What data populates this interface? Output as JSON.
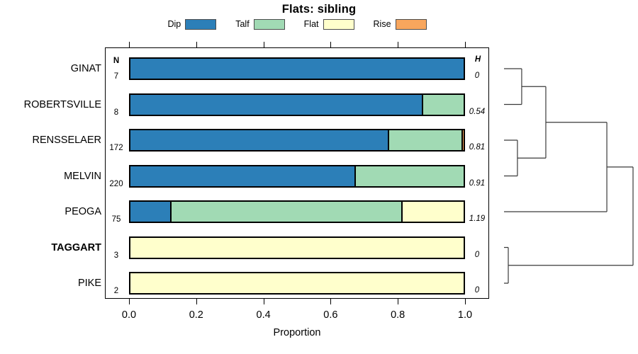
{
  "chart_data": {
    "type": "bar",
    "orientation": "horizontal",
    "stacked": true,
    "title": "Flats: sibling",
    "xlabel": "Proportion",
    "xlim": [
      0,
      1
    ],
    "xticks": [
      "0.0",
      "0.2",
      "0.4",
      "0.6",
      "0.8",
      "1.0"
    ],
    "grid": false,
    "legend_position": "top",
    "n_header": "N",
    "h_header": "H",
    "categories": [
      "GINAT",
      "ROBERTSVILLE",
      "RENSSELAER",
      "MELVIN",
      "PEOGA",
      "TAGGART",
      "PIKE"
    ],
    "bold_categories": [
      "TAGGART"
    ],
    "series": [
      {
        "name": "Dip",
        "color": "#2C7FB8",
        "values": [
          1.0,
          0.875,
          0.773,
          0.673,
          0.12,
          0,
          0
        ]
      },
      {
        "name": "Talf",
        "color": "#A1DAB4",
        "values": [
          0,
          0.125,
          0.221,
          0.327,
          0.693,
          0,
          0
        ]
      },
      {
        "name": "Flat",
        "color": "#FFFFCC",
        "values": [
          0,
          0,
          0,
          0,
          0.187,
          1.0,
          1.0
        ]
      },
      {
        "name": "Rise",
        "color": "#F8A65D",
        "values": [
          0,
          0,
          0.006,
          0,
          0,
          0,
          0
        ]
      }
    ],
    "n_values": [
      "7",
      "8",
      "172",
      "220",
      "75",
      "3",
      "2"
    ],
    "h_values": [
      "0",
      "0.54",
      "0.81",
      "0.91",
      "1.19",
      "0",
      "0"
    ],
    "dendrogram": {
      "height": 1.0,
      "children": [
        {
          "height": 0.797,
          "children": [
            {
              "height": 0.324,
              "children": [
                {
                  "height": 0.137,
                  "children": [
                    {
                      "leaf": 0
                    },
                    {
                      "leaf": 1
                    }
                  ]
                },
                {
                  "height": 0.104,
                  "children": [
                    {
                      "leaf": 2
                    },
                    {
                      "leaf": 3
                    }
                  ]
                }
              ]
            },
            {
              "leaf": 4
            }
          ]
        },
        {
          "height": 0.033,
          "children": [
            {
              "leaf": 5
            },
            {
              "leaf": 6
            }
          ]
        }
      ]
    }
  }
}
